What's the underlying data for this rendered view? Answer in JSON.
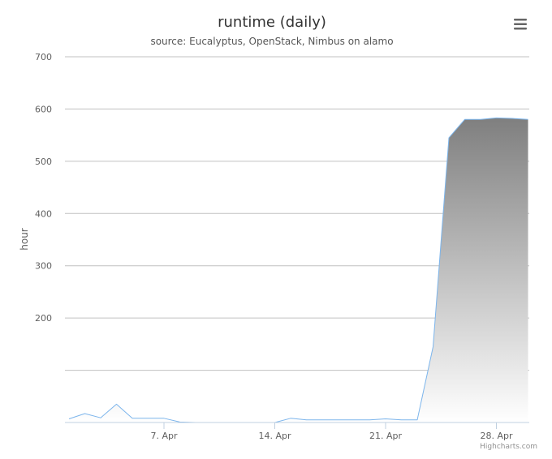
{
  "chart_data": {
    "type": "area",
    "title": "runtime (daily)",
    "subtitle": "source: Eucalyptus, OpenStack, Nimbus on alamo",
    "xlabel": "",
    "ylabel": "hour",
    "x_axis_type": "datetime",
    "x": [
      "Apr 1",
      "Apr 2",
      "Apr 3",
      "Apr 4",
      "Apr 5",
      "Apr 6",
      "Apr 7",
      "Apr 8",
      "Apr 9",
      "Apr 10",
      "Apr 11",
      "Apr 12",
      "Apr 13",
      "Apr 14",
      "Apr 15",
      "Apr 16",
      "Apr 17",
      "Apr 18",
      "Apr 19",
      "Apr 20",
      "Apr 21",
      "Apr 22",
      "Apr 23",
      "Apr 24",
      "Apr 25",
      "Apr 26",
      "Apr 27",
      "Apr 28",
      "Apr 29",
      "Apr 30"
    ],
    "series": [
      {
        "values": [
          7,
          17,
          9,
          35,
          8,
          8,
          8,
          1,
          0,
          0,
          0,
          0,
          0,
          0,
          8,
          5,
          5,
          5,
          5,
          5,
          7,
          5,
          5,
          145,
          545,
          580,
          580,
          583,
          582,
          580
        ]
      }
    ],
    "x_tick_labels": [
      {
        "label": "7. Apr",
        "date": "Apr 7"
      },
      {
        "label": "14. Apr",
        "date": "Apr 14"
      },
      {
        "label": "21. Apr",
        "date": "Apr 21"
      },
      {
        "label": "28. Apr",
        "date": "Apr 28"
      }
    ],
    "y_ticks": [
      100,
      200,
      300,
      400,
      500,
      600,
      700
    ],
    "y_tick_labels": [
      "",
      "200",
      "300",
      "400",
      "500",
      "600",
      "700"
    ],
    "ylim": [
      0,
      700
    ],
    "grid": true,
    "legend": false,
    "colors": {
      "line": "#7cb5ec",
      "fill_top": "#7f7f7f",
      "fill_bottom": "#ffffff",
      "grid": "#c0c0c0",
      "axis": "#c0d0e0",
      "title": "#333333",
      "subtitle": "#555555",
      "label": "#606060",
      "credits": "#909090",
      "menu_icon": "#666666"
    }
  },
  "credits": "Highcharts.com",
  "menu": {
    "icon": "hamburger-menu-icon"
  }
}
